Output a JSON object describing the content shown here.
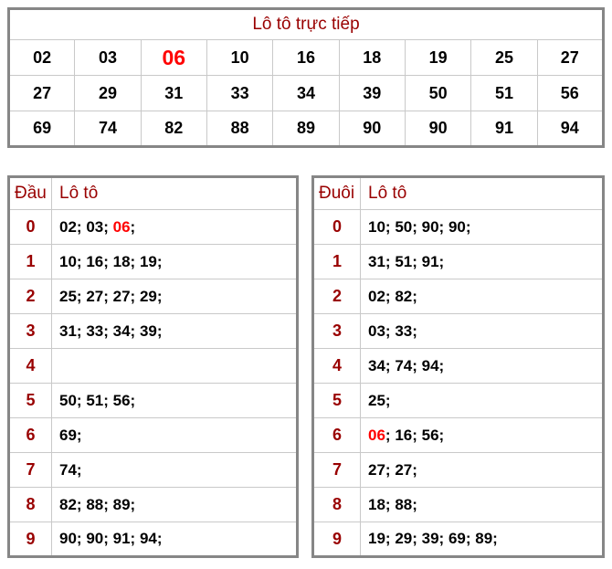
{
  "colors": {
    "dark_red": "#990000",
    "highlight_red": "#ff0000",
    "number_black": "#000000",
    "outer_border_gray": "#868686",
    "inner_line_gray": "#c9c9c9"
  },
  "live_table": {
    "title": "Lô tô trực tiếp",
    "rows": [
      [
        {
          "v": "02"
        },
        {
          "v": "03"
        },
        {
          "v": "06",
          "hl": true
        },
        {
          "v": "10"
        },
        {
          "v": "16"
        },
        {
          "v": "18"
        },
        {
          "v": "19"
        },
        {
          "v": "25"
        },
        {
          "v": "27"
        }
      ],
      [
        {
          "v": "27"
        },
        {
          "v": "29"
        },
        {
          "v": "31"
        },
        {
          "v": "33"
        },
        {
          "v": "34"
        },
        {
          "v": "39"
        },
        {
          "v": "50"
        },
        {
          "v": "51"
        },
        {
          "v": "56"
        }
      ],
      [
        {
          "v": "69"
        },
        {
          "v": "74"
        },
        {
          "v": "82"
        },
        {
          "v": "88"
        },
        {
          "v": "89"
        },
        {
          "v": "90"
        },
        {
          "v": "90"
        },
        {
          "v": "91"
        },
        {
          "v": "94"
        }
      ]
    ]
  },
  "dau_table": {
    "headers": {
      "digit": "Đầu",
      "values": "Lô tô"
    },
    "rows": [
      {
        "digit": "0",
        "values": [
          {
            "v": "02"
          },
          {
            "v": "03"
          },
          {
            "v": "06",
            "hl": true
          }
        ]
      },
      {
        "digit": "1",
        "values": [
          {
            "v": "10"
          },
          {
            "v": "16"
          },
          {
            "v": "18"
          },
          {
            "v": "19"
          }
        ]
      },
      {
        "digit": "2",
        "values": [
          {
            "v": "25"
          },
          {
            "v": "27"
          },
          {
            "v": "27"
          },
          {
            "v": "29"
          }
        ]
      },
      {
        "digit": "3",
        "values": [
          {
            "v": "31"
          },
          {
            "v": "33"
          },
          {
            "v": "34"
          },
          {
            "v": "39"
          }
        ]
      },
      {
        "digit": "4",
        "values": []
      },
      {
        "digit": "5",
        "values": [
          {
            "v": "50"
          },
          {
            "v": "51"
          },
          {
            "v": "56"
          }
        ]
      },
      {
        "digit": "6",
        "values": [
          {
            "v": "69"
          }
        ]
      },
      {
        "digit": "7",
        "values": [
          {
            "v": "74"
          }
        ]
      },
      {
        "digit": "8",
        "values": [
          {
            "v": "82"
          },
          {
            "v": "88"
          },
          {
            "v": "89"
          }
        ]
      },
      {
        "digit": "9",
        "values": [
          {
            "v": "90"
          },
          {
            "v": "90"
          },
          {
            "v": "91"
          },
          {
            "v": "94"
          }
        ]
      }
    ]
  },
  "duoi_table": {
    "headers": {
      "digit": "Đuôi",
      "values": "Lô tô"
    },
    "rows": [
      {
        "digit": "0",
        "values": [
          {
            "v": "10"
          },
          {
            "v": "50"
          },
          {
            "v": "90"
          },
          {
            "v": "90"
          }
        ]
      },
      {
        "digit": "1",
        "values": [
          {
            "v": "31"
          },
          {
            "v": "51"
          },
          {
            "v": "91"
          }
        ]
      },
      {
        "digit": "2",
        "values": [
          {
            "v": "02"
          },
          {
            "v": "82"
          }
        ]
      },
      {
        "digit": "3",
        "values": [
          {
            "v": "03"
          },
          {
            "v": "33"
          }
        ]
      },
      {
        "digit": "4",
        "values": [
          {
            "v": "34"
          },
          {
            "v": "74"
          },
          {
            "v": "94"
          }
        ]
      },
      {
        "digit": "5",
        "values": [
          {
            "v": "25"
          }
        ]
      },
      {
        "digit": "6",
        "values": [
          {
            "v": "06",
            "hl": true
          },
          {
            "v": "16"
          },
          {
            "v": "56"
          }
        ]
      },
      {
        "digit": "7",
        "values": [
          {
            "v": "27"
          },
          {
            "v": "27"
          }
        ]
      },
      {
        "digit": "8",
        "values": [
          {
            "v": "18"
          },
          {
            "v": "88"
          }
        ]
      },
      {
        "digit": "9",
        "values": [
          {
            "v": "19"
          },
          {
            "v": "29"
          },
          {
            "v": "39"
          },
          {
            "v": "69"
          },
          {
            "v": "89"
          }
        ]
      }
    ]
  }
}
